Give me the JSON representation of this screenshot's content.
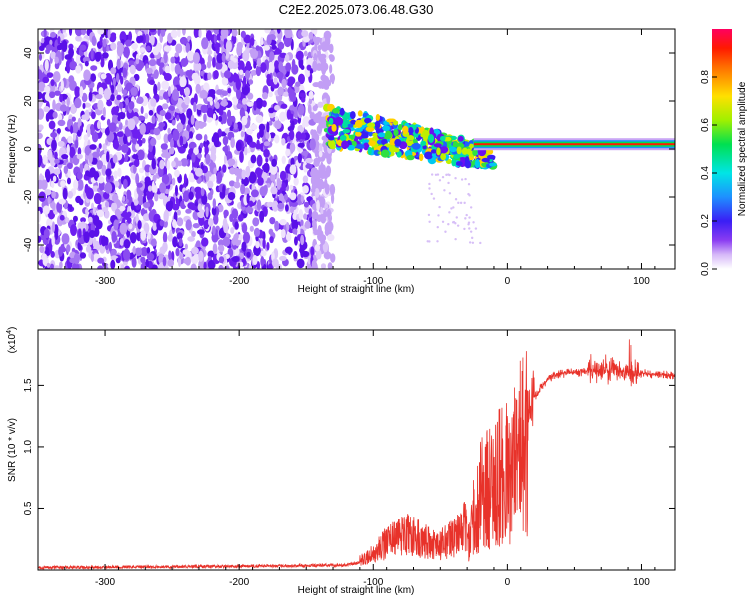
{
  "title": "C2E2.2025.073.06.48.G30",
  "chart_data": [
    {
      "type": "heatmap",
      "xlabel": "Height of straight line (km)",
      "ylabel": "Frequency (Hz)",
      "xlim": [
        -350,
        125
      ],
      "ylim": [
        -50,
        50
      ],
      "xticks": [
        -300,
        -200,
        -100,
        0,
        100
      ],
      "yticks": [
        -40,
        -20,
        0,
        20,
        40
      ],
      "colorbar": {
        "label": "Normalized spectral amplitude",
        "range": [
          0,
          1
        ],
        "ticks": [
          "0.0",
          "0.2",
          "0.4",
          "0.6",
          "0.8"
        ],
        "colors": [
          "#ffffff",
          "#c9a6f5",
          "#7b2cf0",
          "#2a22f5",
          "#1e90ff",
          "#00e5e5",
          "#00e050",
          "#a0f000",
          "#ffe000",
          "#ff8000",
          "#ff2000",
          "#ff0060"
        ]
      },
      "features": {
        "noise_region_x": [
          -350,
          -135
        ],
        "transition_x": [
          -135,
          -25
        ],
        "carrier_track": {
          "x_range": [
            -25,
            125
          ],
          "frequency": 2
        }
      }
    },
    {
      "type": "line",
      "xlabel": "Height of straight line (km)",
      "ylabel": "SNR (10 * v/v)",
      "scale_label": "(x10",
      "scale_exponent": "4",
      "scale_close": ")",
      "xlim": [
        -350,
        125
      ],
      "ylim": [
        0,
        1.95
      ],
      "xticks": [
        -300,
        -200,
        -100,
        0,
        100
      ],
      "yticks": [
        "0.5",
        "1.0",
        "1.5"
      ],
      "color": "#e8322a",
      "trend": {
        "x": [
          -350,
          -200,
          -120,
          -105,
          -95,
          -85,
          -75,
          -60,
          -50,
          -40,
          -30,
          -25,
          -20,
          -15,
          -10,
          0,
          10,
          20,
          30,
          40,
          60,
          80,
          100,
          125
        ],
        "y": [
          0.02,
          0.03,
          0.04,
          0.07,
          0.14,
          0.2,
          0.22,
          0.18,
          0.16,
          0.2,
          0.3,
          0.5,
          0.75,
          0.8,
          0.85,
          0.95,
          1.15,
          1.4,
          1.55,
          1.6,
          1.62,
          1.63,
          1.6,
          1.58
        ]
      }
    }
  ]
}
